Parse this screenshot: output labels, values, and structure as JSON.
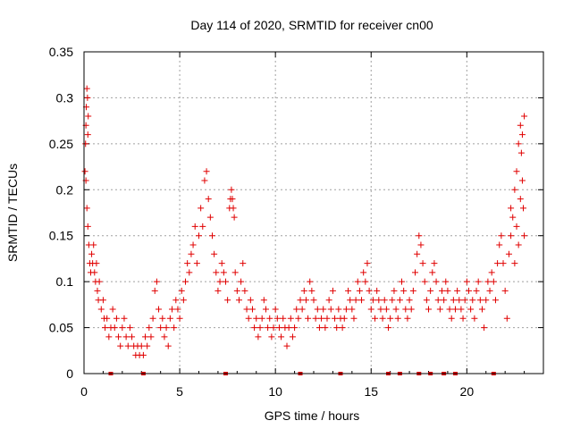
{
  "chart_data": {
    "type": "scatter",
    "title": "Day 114 of 2020, SRMTID for receiver cn00",
    "xlabel": "GPS time / hours",
    "ylabel": "SRMTID / TECUs",
    "xlim": [
      0,
      24
    ],
    "ylim": [
      0,
      0.35
    ],
    "xticks": [
      0,
      5,
      10,
      15,
      20
    ],
    "xtick_labels": [
      "0",
      "5",
      "10",
      "15",
      "20"
    ],
    "yticks": [
      0,
      0.05,
      0.1,
      0.15,
      0.2,
      0.25,
      0.3,
      0.35
    ],
    "ytick_labels": [
      "0",
      "0.05",
      "0.1",
      "0.15",
      "0.2",
      "0.25",
      "0.3",
      "0.35"
    ],
    "grid": true,
    "marker": "+",
    "colors": {
      "series": "#e00000",
      "grid": "#a0a0a0",
      "axis": "#000000"
    },
    "series": [
      {
        "name": "SRMTID",
        "points": [
          [
            0.05,
            0.22
          ],
          [
            0.08,
            0.25
          ],
          [
            0.1,
            0.27
          ],
          [
            0.12,
            0.29
          ],
          [
            0.15,
            0.31
          ],
          [
            0.18,
            0.3
          ],
          [
            0.2,
            0.26
          ],
          [
            0.22,
            0.28
          ],
          [
            0.1,
            0.21
          ],
          [
            0.15,
            0.18
          ],
          [
            0.2,
            0.16
          ],
          [
            0.25,
            0.14
          ],
          [
            0.3,
            0.12
          ],
          [
            0.35,
            0.11
          ],
          [
            0.4,
            0.13
          ],
          [
            0.45,
            0.12
          ],
          [
            0.5,
            0.14
          ],
          [
            0.55,
            0.11
          ],
          [
            0.6,
            0.1
          ],
          [
            0.65,
            0.12
          ],
          [
            0.7,
            0.09
          ],
          [
            0.75,
            0.08
          ],
          [
            0.8,
            0.1
          ],
          [
            0.9,
            0.07
          ],
          [
            1.0,
            0.08
          ],
          [
            1.05,
            0.06
          ],
          [
            1.1,
            0.05
          ],
          [
            1.2,
            0.06
          ],
          [
            1.3,
            0.04
          ],
          [
            1.4,
            0.05
          ],
          [
            1.5,
            0.07
          ],
          [
            1.6,
            0.05
          ],
          [
            1.7,
            0.06
          ],
          [
            1.8,
            0.04
          ],
          [
            1.9,
            0.03
          ],
          [
            2.0,
            0.05
          ],
          [
            2.1,
            0.06
          ],
          [
            2.2,
            0.04
          ],
          [
            2.3,
            0.03
          ],
          [
            2.4,
            0.05
          ],
          [
            2.5,
            0.04
          ],
          [
            2.6,
            0.03
          ],
          [
            2.7,
            0.02
          ],
          [
            2.8,
            0.03
          ],
          [
            2.9,
            0.02
          ],
          [
            3.0,
            0.03
          ],
          [
            3.1,
            0.02
          ],
          [
            3.2,
            0.04
          ],
          [
            3.3,
            0.03
          ],
          [
            3.4,
            0.05
          ],
          [
            3.5,
            0.04
          ],
          [
            3.6,
            0.06
          ],
          [
            3.7,
            0.09
          ],
          [
            3.8,
            0.1
          ],
          [
            3.9,
            0.07
          ],
          [
            4.0,
            0.05
          ],
          [
            4.1,
            0.06
          ],
          [
            4.2,
            0.04
          ],
          [
            4.3,
            0.05
          ],
          [
            4.4,
            0.03
          ],
          [
            4.5,
            0.06
          ],
          [
            4.6,
            0.07
          ],
          [
            4.7,
            0.05
          ],
          [
            4.8,
            0.08
          ],
          [
            4.9,
            0.07
          ],
          [
            5.0,
            0.06
          ],
          [
            5.1,
            0.09
          ],
          [
            5.2,
            0.08
          ],
          [
            5.3,
            0.1
          ],
          [
            5.4,
            0.12
          ],
          [
            5.5,
            0.11
          ],
          [
            5.6,
            0.13
          ],
          [
            5.7,
            0.14
          ],
          [
            5.8,
            0.16
          ],
          [
            5.9,
            0.12
          ],
          [
            6.0,
            0.15
          ],
          [
            6.1,
            0.18
          ],
          [
            6.2,
            0.16
          ],
          [
            6.3,
            0.21
          ],
          [
            6.4,
            0.22
          ],
          [
            6.5,
            0.19
          ],
          [
            6.6,
            0.17
          ],
          [
            6.7,
            0.15
          ],
          [
            6.8,
            0.13
          ],
          [
            6.9,
            0.11
          ],
          [
            7.0,
            0.09
          ],
          [
            7.1,
            0.1
          ],
          [
            7.2,
            0.12
          ],
          [
            7.3,
            0.11
          ],
          [
            7.4,
            0.1
          ],
          [
            7.5,
            0.08
          ],
          [
            7.6,
            0.18
          ],
          [
            7.65,
            0.19
          ],
          [
            7.7,
            0.2
          ],
          [
            7.75,
            0.19
          ],
          [
            7.8,
            0.18
          ],
          [
            7.85,
            0.17
          ],
          [
            7.9,
            0.11
          ],
          [
            8.0,
            0.09
          ],
          [
            8.1,
            0.08
          ],
          [
            8.2,
            0.1
          ],
          [
            8.3,
            0.12
          ],
          [
            8.4,
            0.09
          ],
          [
            8.5,
            0.07
          ],
          [
            8.6,
            0.06
          ],
          [
            8.7,
            0.08
          ],
          [
            8.8,
            0.07
          ],
          [
            8.9,
            0.05
          ],
          [
            9.0,
            0.06
          ],
          [
            9.1,
            0.04
          ],
          [
            9.2,
            0.05
          ],
          [
            9.3,
            0.06
          ],
          [
            9.4,
            0.08
          ],
          [
            9.5,
            0.07
          ],
          [
            9.6,
            0.05
          ],
          [
            9.7,
            0.06
          ],
          [
            9.8,
            0.04
          ],
          [
            9.9,
            0.05
          ],
          [
            10.0,
            0.07
          ],
          [
            10.1,
            0.06
          ],
          [
            10.2,
            0.05
          ],
          [
            10.3,
            0.04
          ],
          [
            10.4,
            0.06
          ],
          [
            10.5,
            0.05
          ],
          [
            10.6,
            0.03
          ],
          [
            10.7,
            0.05
          ],
          [
            10.8,
            0.06
          ],
          [
            10.9,
            0.04
          ],
          [
            11.0,
            0.05
          ],
          [
            11.1,
            0.07
          ],
          [
            11.2,
            0.06
          ],
          [
            11.3,
            0.08
          ],
          [
            11.4,
            0.07
          ],
          [
            11.5,
            0.09
          ],
          [
            11.6,
            0.08
          ],
          [
            11.7,
            0.06
          ],
          [
            11.8,
            0.1
          ],
          [
            11.9,
            0.09
          ],
          [
            12.0,
            0.08
          ],
          [
            12.1,
            0.06
          ],
          [
            12.2,
            0.07
          ],
          [
            12.3,
            0.05
          ],
          [
            12.4,
            0.06
          ],
          [
            12.5,
            0.07
          ],
          [
            12.6,
            0.05
          ],
          [
            12.7,
            0.06
          ],
          [
            12.8,
            0.08
          ],
          [
            12.9,
            0.07
          ],
          [
            13.0,
            0.09
          ],
          [
            13.1,
            0.06
          ],
          [
            13.2,
            0.05
          ],
          [
            13.3,
            0.07
          ],
          [
            13.4,
            0.06
          ],
          [
            13.5,
            0.05
          ],
          [
            13.6,
            0.06
          ],
          [
            13.7,
            0.07
          ],
          [
            13.8,
            0.09
          ],
          [
            13.9,
            0.08
          ],
          [
            14.0,
            0.07
          ],
          [
            14.1,
            0.06
          ],
          [
            14.2,
            0.08
          ],
          [
            14.3,
            0.1
          ],
          [
            14.4,
            0.09
          ],
          [
            14.5,
            0.08
          ],
          [
            14.6,
            0.11
          ],
          [
            14.7,
            0.1
          ],
          [
            14.8,
            0.12
          ],
          [
            14.9,
            0.09
          ],
          [
            15.0,
            0.07
          ],
          [
            15.1,
            0.08
          ],
          [
            15.2,
            0.06
          ],
          [
            15.3,
            0.09
          ],
          [
            15.4,
            0.08
          ],
          [
            15.5,
            0.07
          ],
          [
            15.6,
            0.06
          ],
          [
            15.7,
            0.08
          ],
          [
            15.8,
            0.07
          ],
          [
            15.9,
            0.05
          ],
          [
            16.0,
            0.06
          ],
          [
            16.1,
            0.08
          ],
          [
            16.2,
            0.09
          ],
          [
            16.3,
            0.07
          ],
          [
            16.4,
            0.06
          ],
          [
            16.5,
            0.08
          ],
          [
            16.6,
            0.1
          ],
          [
            16.7,
            0.09
          ],
          [
            16.8,
            0.07
          ],
          [
            16.9,
            0.06
          ],
          [
            17.0,
            0.08
          ],
          [
            17.1,
            0.07
          ],
          [
            17.2,
            0.09
          ],
          [
            17.3,
            0.11
          ],
          [
            17.4,
            0.13
          ],
          [
            17.5,
            0.15
          ],
          [
            17.6,
            0.14
          ],
          [
            17.7,
            0.12
          ],
          [
            17.8,
            0.1
          ],
          [
            17.9,
            0.08
          ],
          [
            18.0,
            0.07
          ],
          [
            18.1,
            0.09
          ],
          [
            18.2,
            0.11
          ],
          [
            18.3,
            0.12
          ],
          [
            18.4,
            0.1
          ],
          [
            18.5,
            0.08
          ],
          [
            18.6,
            0.07
          ],
          [
            18.7,
            0.09
          ],
          [
            18.8,
            0.08
          ],
          [
            18.9,
            0.1
          ],
          [
            19.0,
            0.09
          ],
          [
            19.1,
            0.07
          ],
          [
            19.2,
            0.06
          ],
          [
            19.3,
            0.08
          ],
          [
            19.4,
            0.07
          ],
          [
            19.5,
            0.09
          ],
          [
            19.6,
            0.08
          ],
          [
            19.7,
            0.07
          ],
          [
            19.8,
            0.06
          ],
          [
            19.9,
            0.08
          ],
          [
            20.0,
            0.1
          ],
          [
            20.1,
            0.09
          ],
          [
            20.2,
            0.07
          ],
          [
            20.3,
            0.08
          ],
          [
            20.4,
            0.06
          ],
          [
            20.5,
            0.09
          ],
          [
            20.6,
            0.1
          ],
          [
            20.7,
            0.08
          ],
          [
            20.8,
            0.07
          ],
          [
            20.9,
            0.05
          ],
          [
            21.0,
            0.08
          ],
          [
            21.1,
            0.1
          ],
          [
            21.2,
            0.09
          ],
          [
            21.3,
            0.11
          ],
          [
            21.4,
            0.1
          ],
          [
            21.5,
            0.08
          ],
          [
            21.6,
            0.12
          ],
          [
            21.7,
            0.14
          ],
          [
            21.8,
            0.15
          ],
          [
            21.9,
            0.12
          ],
          [
            22.0,
            0.09
          ],
          [
            22.1,
            0.06
          ],
          [
            22.2,
            0.13
          ],
          [
            22.3,
            0.15
          ],
          [
            22.4,
            0.17
          ],
          [
            22.5,
            0.2
          ],
          [
            22.6,
            0.22
          ],
          [
            22.7,
            0.25
          ],
          [
            22.8,
            0.27
          ],
          [
            22.85,
            0.24
          ],
          [
            22.9,
            0.21
          ],
          [
            22.95,
            0.18
          ],
          [
            23.0,
            0.15
          ],
          [
            22.7,
            0.14
          ],
          [
            22.5,
            0.12
          ],
          [
            22.3,
            0.18
          ],
          [
            22.6,
            0.16
          ],
          [
            22.8,
            0.19
          ],
          [
            22.9,
            0.26
          ],
          [
            23.0,
            0.28
          ]
        ]
      }
    ],
    "baseline_marks": [
      1.4,
      3.1,
      7.4,
      11.3,
      13.4,
      15.9,
      16.5,
      17.5,
      18.1,
      18.8,
      19.4,
      21.4
    ]
  }
}
